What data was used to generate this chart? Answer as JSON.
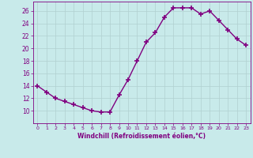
{
  "x": [
    0,
    1,
    2,
    3,
    4,
    5,
    6,
    7,
    8,
    9,
    10,
    11,
    12,
    13,
    14,
    15,
    16,
    17,
    18,
    19,
    20,
    21,
    22,
    23
  ],
  "y": [
    14.0,
    13.0,
    12.0,
    11.5,
    11.0,
    10.5,
    10.0,
    9.8,
    9.8,
    12.5,
    15.0,
    18.0,
    21.0,
    22.5,
    25.0,
    26.5,
    26.5,
    26.5,
    25.5,
    26.0,
    24.5,
    23.0,
    21.5,
    20.5
  ],
  "line_color": "#800080",
  "marker": "+",
  "marker_size": 4,
  "marker_lw": 1.2,
  "bg_color": "#c8eaea",
  "grid_color": "#b0d0d0",
  "xlabel": "Windchill (Refroidissement éolien,°C)",
  "xlabel_color": "#800080",
  "tick_color": "#800080",
  "spine_color": "#800080",
  "ylim": [
    8,
    27.5
  ],
  "xlim": [
    -0.5,
    23.5
  ],
  "yticks": [
    10,
    12,
    14,
    16,
    18,
    20,
    22,
    24,
    26
  ],
  "xticks": [
    0,
    1,
    2,
    3,
    4,
    5,
    6,
    7,
    8,
    9,
    10,
    11,
    12,
    13,
    14,
    15,
    16,
    17,
    18,
    19,
    20,
    21,
    22,
    23
  ],
  "title": ""
}
